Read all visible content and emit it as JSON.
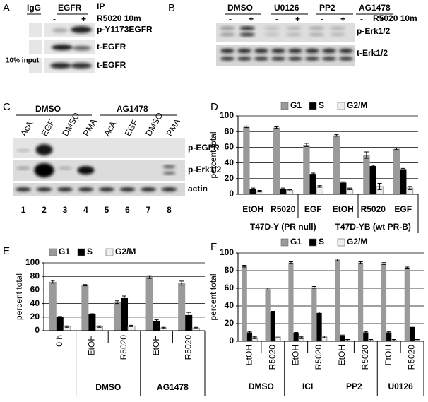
{
  "figure_panels": [
    {
      "label": "A",
      "ip_groups": [
        "IgG",
        "EGFR"
      ],
      "ip": "IP",
      "treatment": [
        "-",
        "+"
      ],
      "treatment_label": "R5020 10m",
      "rows": [
        "p-Y1173EGFR",
        "t-EGFR",
        "t-EGFR"
      ],
      "input_note": "10% input"
    },
    {
      "label": "B",
      "groups": [
        "DMSO",
        "U0126",
        "PP2",
        "AG1478"
      ],
      "treatment": [
        "-",
        "+",
        "-",
        "+",
        "-",
        "+",
        "-",
        "+"
      ],
      "treatment_label": "R5020 10m",
      "rows": [
        "p-Erk1/2",
        "t-Erk1/2"
      ]
    },
    {
      "label": "C",
      "groups": [
        "DMSO",
        "AG1478"
      ],
      "lanes": [
        "AcA.",
        "EGF",
        "DMSO",
        "PMA",
        "AcA.",
        "EGF",
        "DMSO",
        "PMA"
      ],
      "rows": [
        "p-EGFR",
        "p-Erk1/2",
        "actin"
      ],
      "lane_numbers": [
        1,
        2,
        3,
        4,
        5,
        6,
        7,
        8
      ]
    }
  ],
  "chart_data": [
    {
      "type": "bar",
      "panel": "D",
      "y_label": "percent total",
      "groups": [
        {
          "label": "T47D-Y (PR null)",
          "categories": [
            "EtOH",
            "R5020",
            "EGF"
          ]
        },
        {
          "label": "T47D-YB (wt PR-B)",
          "categories": [
            "EtOH",
            "R5020",
            "EGF"
          ]
        }
      ],
      "series": [
        {
          "name": "G1",
          "color": "#9a9a9a",
          "values": [
            86,
            85,
            63,
            75,
            50,
            58
          ],
          "errors": [
            1,
            1,
            2,
            1,
            4,
            1
          ]
        },
        {
          "name": "S",
          "color": "#000000",
          "values": [
            7,
            7,
            26,
            15,
            36,
            32
          ],
          "errors": [
            1,
            1,
            1,
            1,
            1,
            1
          ]
        },
        {
          "name": "G2/M",
          "color": "#eeeeee",
          "values": [
            4,
            5,
            10,
            7,
            10,
            8
          ],
          "errors": [
            1,
            1,
            1,
            1,
            4,
            2
          ]
        }
      ],
      "ylim": [
        0,
        100
      ],
      "yticks": [
        0,
        20,
        40,
        60,
        80,
        100
      ],
      "grid": true
    },
    {
      "type": "bar",
      "panel": "E",
      "y_label": "percent total",
      "groups": [
        {
          "label": null,
          "categories": [
            "0 h"
          ]
        },
        {
          "label": "DMSO",
          "categories": [
            "EtOH",
            "R5020"
          ]
        },
        {
          "label": "AG1478",
          "categories": [
            "EtOH",
            "R5020"
          ]
        }
      ],
      "series": [
        {
          "name": "G1",
          "color": "#9a9a9a",
          "values": [
            72,
            67,
            42,
            79,
            70
          ],
          "errors": [
            2,
            1,
            2,
            2,
            3
          ]
        },
        {
          "name": "S",
          "color": "#000000",
          "values": [
            20,
            24,
            48,
            14,
            23
          ],
          "errors": [
            1,
            1,
            3,
            2,
            4
          ]
        },
        {
          "name": "G2/M",
          "color": "#eeeeee",
          "values": [
            6,
            6,
            7,
            4,
            4
          ],
          "errors": [
            1,
            1,
            1,
            1,
            1
          ]
        }
      ],
      "ylim": [
        0,
        100
      ],
      "yticks": [
        0,
        20,
        40,
        60,
        80,
        100
      ],
      "grid": true
    },
    {
      "type": "bar",
      "panel": "F",
      "y_label": "percent total",
      "groups": [
        {
          "label": "DMSO",
          "categories": [
            "EtOH",
            "R5020"
          ]
        },
        {
          "label": "ICI",
          "categories": [
            "EtOH",
            "R5020"
          ]
        },
        {
          "label": "PP2",
          "categories": [
            "EtOH",
            "R5020"
          ]
        },
        {
          "label": "U0126",
          "categories": [
            "EtOH",
            "R5020"
          ]
        }
      ],
      "series": [
        {
          "name": "G1",
          "color": "#9a9a9a",
          "values": [
            85,
            59,
            89,
            61,
            92,
            89,
            88,
            83
          ],
          "errors": [
            1,
            1,
            1,
            1,
            1,
            1,
            1,
            1
          ]
        },
        {
          "name": "S",
          "color": "#000000",
          "values": [
            10,
            33,
            9,
            32,
            6,
            10,
            10,
            16
          ],
          "errors": [
            1,
            1,
            1,
            1,
            1,
            1,
            1,
            1
          ]
        },
        {
          "name": "G2/M",
          "color": "#eeeeee",
          "values": [
            4,
            5,
            4,
            5,
            1,
            1,
            1,
            1
          ],
          "errors": [
            1,
            1,
            1,
            1,
            1,
            1,
            1,
            1
          ]
        }
      ],
      "ylim": [
        0,
        100
      ],
      "yticks": [
        0,
        20,
        40,
        60,
        80,
        100
      ],
      "grid": true
    }
  ]
}
